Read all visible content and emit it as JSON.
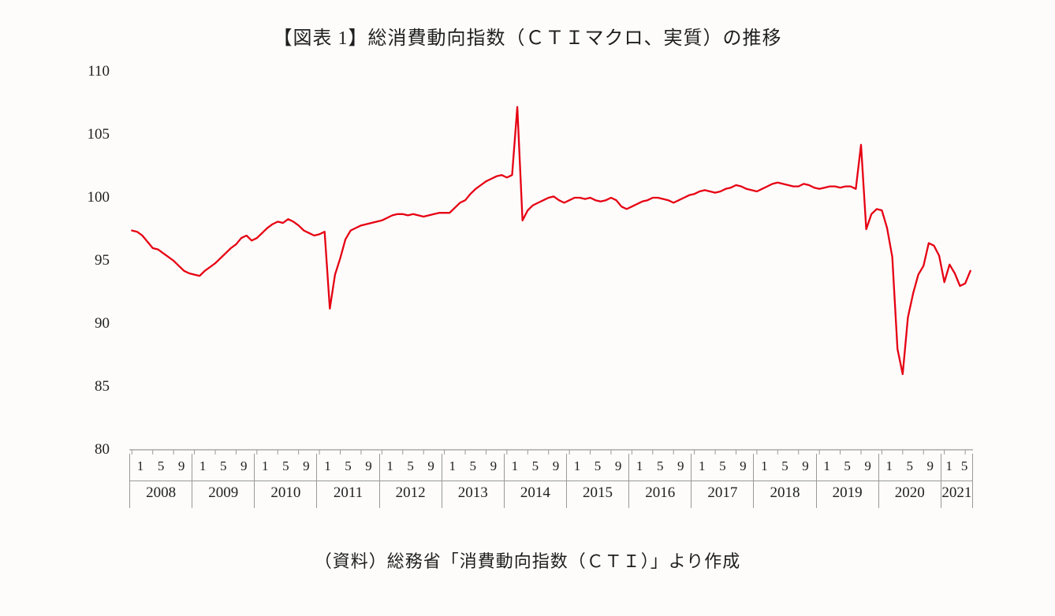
{
  "title": "【図表 1】総消費動向指数（ＣＴＩマクロ、実質）の推移",
  "source": "（資料）総務省「消費動向指数（ＣＴＩ）」より作成",
  "chart": {
    "type": "line",
    "background_color": "#fdfcfb",
    "line_color": "#e60012",
    "line_width": 2.3,
    "axis_color": "#808080",
    "tick_color": "#999999",
    "ylim": [
      80,
      110
    ],
    "ytick_step": 5,
    "yticks": [
      80,
      85,
      90,
      95,
      100,
      105,
      110
    ],
    "title_fontsize": 24,
    "label_fontsize": 19,
    "xaxis": {
      "years": [
        {
          "year": "2008",
          "months": [
            "1",
            "5",
            "9"
          ],
          "month_count": 12
        },
        {
          "year": "2009",
          "months": [
            "1",
            "5",
            "9"
          ],
          "month_count": 12
        },
        {
          "year": "2010",
          "months": [
            "1",
            "5",
            "9"
          ],
          "month_count": 12
        },
        {
          "year": "2011",
          "months": [
            "1",
            "5",
            "9"
          ],
          "month_count": 12
        },
        {
          "year": "2012",
          "months": [
            "1",
            "5",
            "9"
          ],
          "month_count": 12
        },
        {
          "year": "2013",
          "months": [
            "1",
            "5",
            "9"
          ],
          "month_count": 12
        },
        {
          "year": "2014",
          "months": [
            "1",
            "5",
            "9"
          ],
          "month_count": 12
        },
        {
          "year": "2015",
          "months": [
            "1",
            "5",
            "9"
          ],
          "month_count": 12
        },
        {
          "year": "2016",
          "months": [
            "1",
            "5",
            "9"
          ],
          "month_count": 12
        },
        {
          "year": "2017",
          "months": [
            "1",
            "5",
            "9"
          ],
          "month_count": 12
        },
        {
          "year": "2018",
          "months": [
            "1",
            "5",
            "9"
          ],
          "month_count": 12
        },
        {
          "year": "2019",
          "months": [
            "1",
            "5",
            "9"
          ],
          "month_count": 12
        },
        {
          "year": "2020",
          "months": [
            "1",
            "5",
            "9"
          ],
          "month_count": 12
        },
        {
          "year": "2021",
          "months": [
            "1",
            "5"
          ],
          "month_count": 6
        }
      ]
    },
    "values": [
      97.4,
      97.3,
      97.0,
      96.5,
      96.0,
      95.9,
      95.6,
      95.3,
      95.0,
      94.6,
      94.2,
      94.0,
      93.9,
      93.8,
      94.2,
      94.5,
      94.8,
      95.2,
      95.6,
      96.0,
      96.3,
      96.8,
      97.0,
      96.6,
      96.8,
      97.2,
      97.6,
      97.9,
      98.1,
      98.0,
      98.3,
      98.1,
      97.8,
      97.4,
      97.2,
      97.0,
      97.1,
      97.3,
      91.2,
      93.9,
      95.2,
      96.7,
      97.4,
      97.6,
      97.8,
      97.9,
      98.0,
      98.1,
      98.2,
      98.4,
      98.6,
      98.7,
      98.7,
      98.6,
      98.7,
      98.6,
      98.5,
      98.6,
      98.7,
      98.8,
      98.8,
      98.8,
      99.2,
      99.6,
      99.8,
      100.3,
      100.7,
      101.0,
      101.3,
      101.5,
      101.7,
      101.8,
      101.6,
      101.8,
      107.2,
      98.2,
      99.0,
      99.4,
      99.6,
      99.8,
      100.0,
      100.1,
      99.8,
      99.6,
      99.8,
      100.0,
      100.0,
      99.9,
      100.0,
      99.8,
      99.7,
      99.8,
      100.0,
      99.8,
      99.3,
      99.1,
      99.3,
      99.5,
      99.7,
      99.8,
      100.0,
      100.0,
      99.9,
      99.8,
      99.6,
      99.8,
      100.0,
      100.2,
      100.3,
      100.5,
      100.6,
      100.5,
      100.4,
      100.5,
      100.7,
      100.8,
      101.0,
      100.9,
      100.7,
      100.6,
      100.5,
      100.7,
      100.9,
      101.1,
      101.2,
      101.1,
      101.0,
      100.9,
      100.9,
      101.1,
      101.0,
      100.8,
      100.7,
      100.8,
      100.9,
      100.9,
      100.8,
      100.9,
      100.9,
      100.7,
      104.2,
      97.5,
      98.7,
      99.1,
      99.0,
      97.6,
      95.3,
      88.0,
      86.0,
      90.5,
      92.4,
      93.9,
      94.6,
      96.4,
      96.2,
      95.4,
      93.3,
      94.7,
      94.0,
      93.0,
      93.2,
      94.2
    ]
  }
}
